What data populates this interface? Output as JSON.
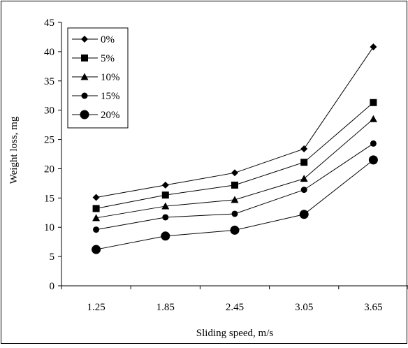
{
  "chart_data": {
    "type": "line",
    "title": "",
    "xlabel": "Sliding speed, m/s",
    "ylabel": "Weight loss, mg",
    "categories": [
      "1.25",
      "1.85",
      "2.45",
      "3.05",
      "3.65"
    ],
    "ylim": [
      0,
      45
    ],
    "yticks": [
      "0",
      "5",
      "10",
      "15",
      "20",
      "25",
      "30",
      "35",
      "40",
      "45"
    ],
    "grid": false,
    "legend_position": "top-left",
    "series": [
      {
        "name": "0%",
        "marker": "diamond",
        "values": [
          15.1,
          17.2,
          19.3,
          23.4,
          40.8
        ]
      },
      {
        "name": "5%",
        "marker": "square",
        "values": [
          13.2,
          15.5,
          17.2,
          21.1,
          31.3
        ]
      },
      {
        "name": "10%",
        "marker": "triangle",
        "values": [
          11.6,
          13.6,
          14.7,
          18.3,
          28.5
        ]
      },
      {
        "name": "15%",
        "marker": "circle-small",
        "values": [
          9.6,
          11.7,
          12.3,
          16.4,
          24.3
        ]
      },
      {
        "name": "20%",
        "marker": "circle-large",
        "values": [
          6.2,
          8.5,
          9.5,
          12.2,
          21.5
        ]
      }
    ],
    "colors": {
      "line": "#000000",
      "marker": "#000000",
      "background": "#ffffff"
    }
  }
}
